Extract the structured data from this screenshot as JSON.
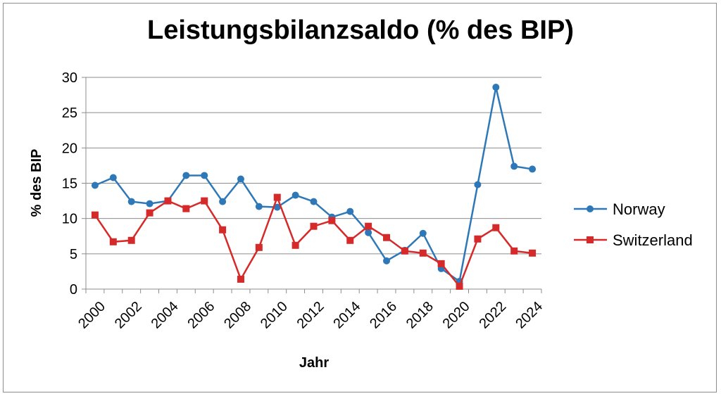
{
  "chart_data": {
    "type": "line",
    "title": "Leistungsbilanzsaldo (% des BIP)",
    "xlabel": "Jahr",
    "ylabel": "% des BIP",
    "ylim": [
      0,
      30
    ],
    "yticks": [
      0,
      5,
      10,
      15,
      20,
      25,
      30
    ],
    "grid": true,
    "legend_position": "right",
    "x": [
      2000,
      2001,
      2002,
      2003,
      2004,
      2005,
      2006,
      2007,
      2008,
      2009,
      2010,
      2011,
      2012,
      2013,
      2014,
      2015,
      2016,
      2017,
      2018,
      2019,
      2020,
      2021,
      2022,
      2023,
      2024
    ],
    "xtick_labels": [
      "2000",
      "2002",
      "2004",
      "2006",
      "2008",
      "2010",
      "2012",
      "2014",
      "2016",
      "2018",
      "2020",
      "2022",
      "2024"
    ],
    "series": [
      {
        "name": "Norway",
        "color": "#2e78b7",
        "marker": "circle",
        "values": [
          14.7,
          15.8,
          12.4,
          12.1,
          12.5,
          16.1,
          16.1,
          12.4,
          15.6,
          11.7,
          11.6,
          13.3,
          12.4,
          10.2,
          11.0,
          8.0,
          4.0,
          5.5,
          7.9,
          2.9,
          1.1,
          14.8,
          28.6,
          17.4,
          17.0
        ]
      },
      {
        "name": "Switzerland",
        "color": "#d62a2a",
        "marker": "square",
        "values": [
          10.5,
          6.7,
          6.9,
          10.8,
          12.5,
          11.4,
          12.5,
          8.4,
          1.4,
          5.9,
          13.0,
          6.2,
          8.9,
          9.7,
          6.9,
          8.9,
          7.3,
          5.4,
          5.1,
          3.6,
          0.4,
          7.1,
          8.7,
          5.4,
          5.1
        ]
      }
    ]
  }
}
